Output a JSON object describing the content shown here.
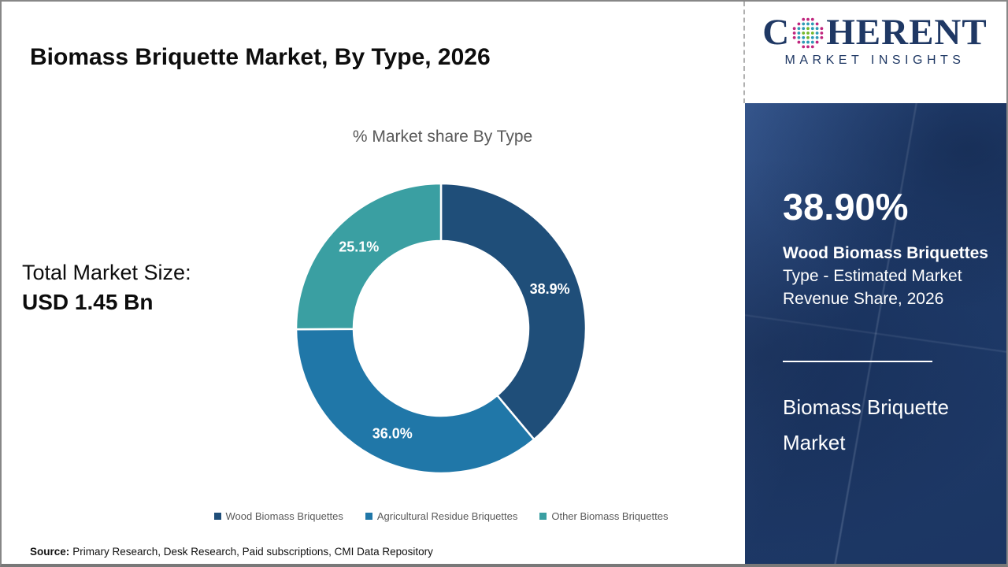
{
  "header": {
    "title": "Biomass Briquette Market, By Type, 2026"
  },
  "logo": {
    "brand_c": "C",
    "brand_rest": "HERENT",
    "tagline": "MARKET INSIGHTS",
    "navy": "#1f3864",
    "dot_green": "#76b82a",
    "dot_blue": "#2e9bb5",
    "dot_magenta": "#c0267e"
  },
  "main": {
    "total_label": "Total Market Size:",
    "total_value": "USD 1.45 Bn",
    "source_label": "Source:",
    "source_text": "Primary Research, Desk Research, Paid subscriptions, CMI Data Repository"
  },
  "chart_data": {
    "type": "pie",
    "subtype": "donut",
    "title": "% Market share By Type",
    "categories": [
      "Wood Biomass Briquettes",
      "Agricultural Residue Briquettes",
      "Other Biomass Briquettes"
    ],
    "values": [
      38.9,
      36.0,
      25.1
    ],
    "labels": [
      "38.9%",
      "36.0%",
      "25.1%"
    ],
    "colors": [
      "#1f4e79",
      "#2077a8",
      "#3a9fa2"
    ],
    "label_color": "#ffffff",
    "start_angle_deg": 0,
    "legend_position": "bottom"
  },
  "sidebar": {
    "stat_value": "38.90%",
    "stat_category": "Wood Biomass Briquettes",
    "stat_description": "Type - Estimated Market Revenue Share, 2026",
    "market_name": "Biomass Briquette Market",
    "bg_color": "#1e3a69"
  }
}
